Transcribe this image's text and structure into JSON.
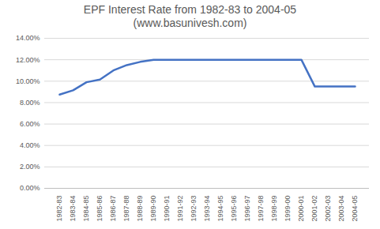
{
  "chart_data": {
    "type": "line",
    "title": "EPF Interest Rate from 1982-83 to 2004-05",
    "subtitle": "(www.basunivesh.com)",
    "categories": [
      "1982-83",
      "1983-84",
      "1984-85",
      "1985-86",
      "1986-87",
      "1987-88",
      "1988-89",
      "1989-90",
      "1990-91",
      "1991-92",
      "1992-93",
      "1993-94",
      "1994-95",
      "1995-96",
      "1996-97",
      "1997-98",
      "1998-99",
      "1999-00",
      "2000-01",
      "2001-02",
      "2002-03",
      "2003-04",
      "2004-05"
    ],
    "values": [
      8.75,
      9.15,
      9.9,
      10.15,
      11,
      11.5,
      11.8,
      12,
      12,
      12,
      12,
      12,
      12,
      12,
      12,
      12,
      12,
      12,
      12,
      9.5,
      9.5,
      9.5,
      9.5
    ],
    "color": "#4472c4",
    "ylim": [
      0,
      14
    ],
    "yticks": [
      {
        "value": 0,
        "label": "0.00%"
      },
      {
        "value": 2,
        "label": "2.00%"
      },
      {
        "value": 4,
        "label": "4.00%"
      },
      {
        "value": 6,
        "label": "6.00%"
      },
      {
        "value": 8,
        "label": "8.00%"
      },
      {
        "value": 10,
        "label": "10.00%"
      },
      {
        "value": 12,
        "label": "12.00%"
      },
      {
        "value": 14,
        "label": "14.00%"
      }
    ],
    "grid": true
  }
}
